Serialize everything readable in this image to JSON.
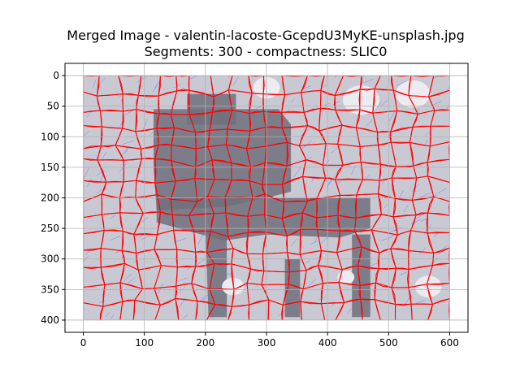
{
  "chart_data": {
    "type": "image",
    "title": "Merged Image - valentin-lacoste-GcepdU3MyKE-unsplash.jpg",
    "subtitle": "Segments: 300 - compactness: SLIC0",
    "xlim": [
      -30,
      630
    ],
    "ylim": [
      420,
      -20
    ],
    "image_extent": {
      "x": [
        0,
        600
      ],
      "y": [
        0,
        400
      ]
    },
    "x_ticks": [
      0,
      100,
      200,
      300,
      400,
      500,
      600
    ],
    "y_ticks": [
      0,
      50,
      100,
      150,
      200,
      250,
      300,
      350,
      400
    ],
    "grid": true,
    "colors": {
      "background_region": "#c9c9d3",
      "dark_region": "#70707c",
      "light_region": "#ebebf0",
      "segment_boundary": "#ff0000",
      "flow_lines": "#3a3aff",
      "grid": "#b0b0b0"
    }
  }
}
